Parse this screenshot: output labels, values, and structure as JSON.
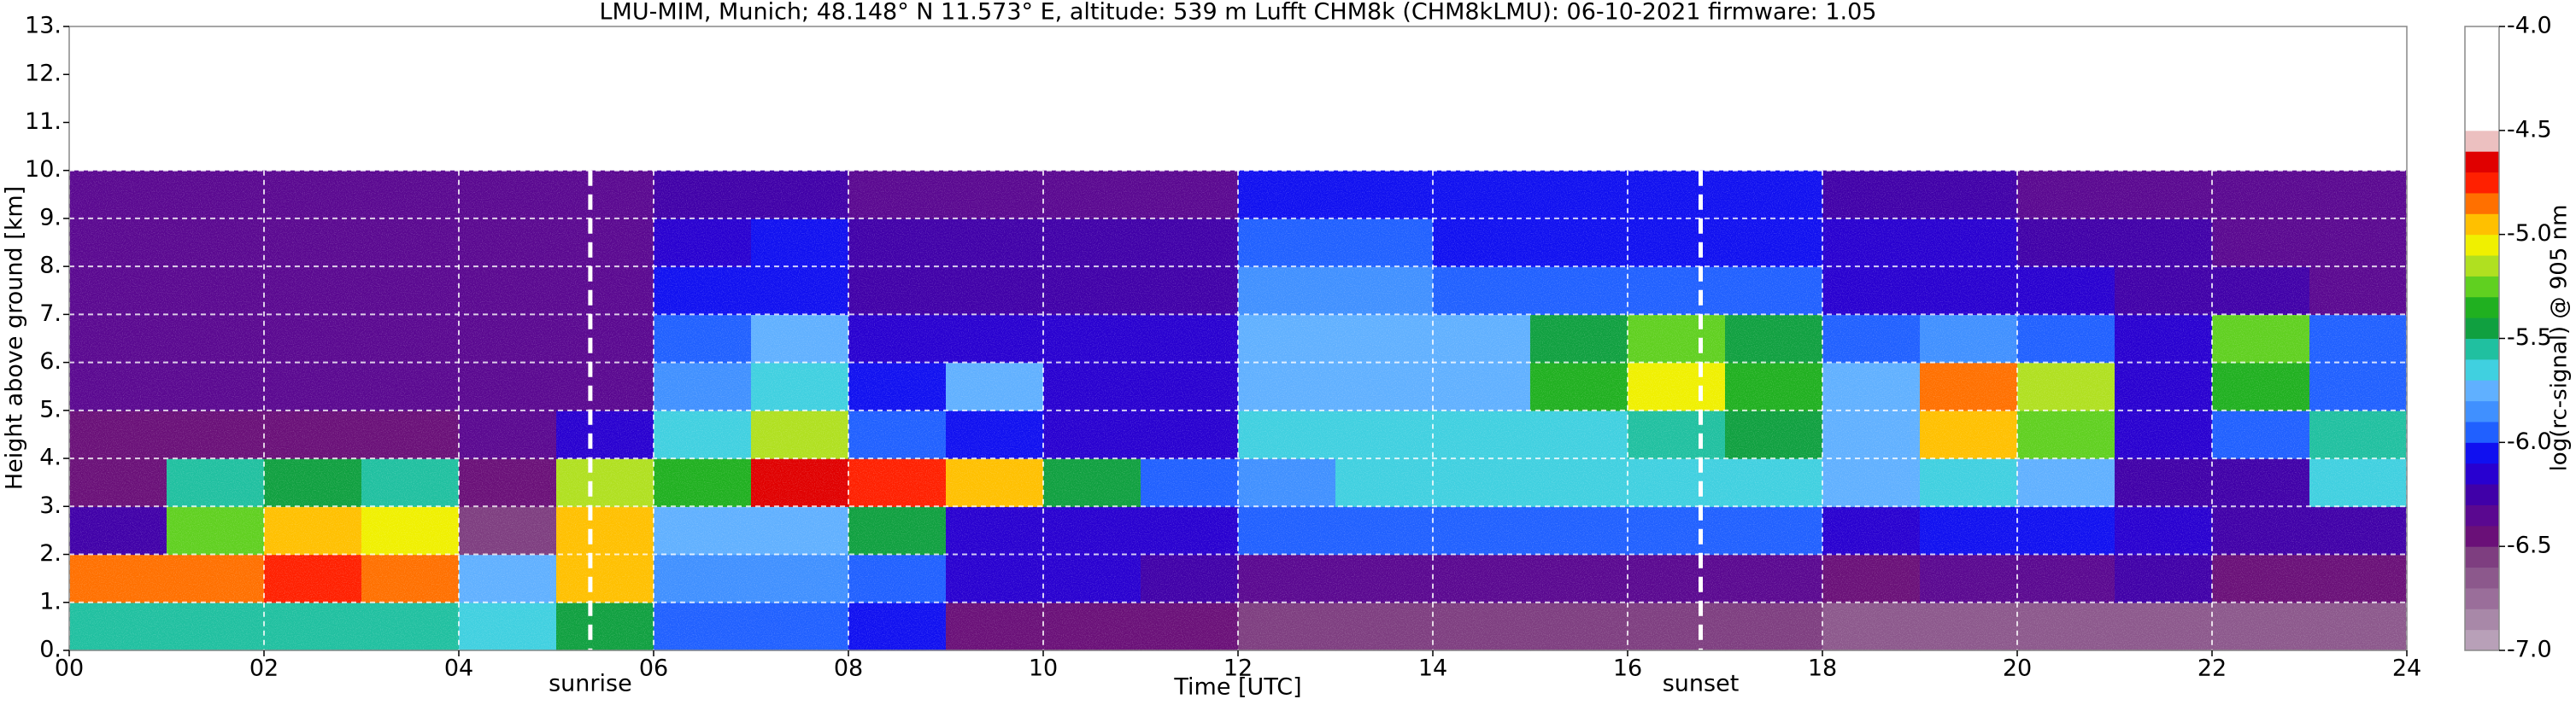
{
  "chart_data": {
    "type": "heatmap",
    "title": "LMU-MIM, Munich; 48.148° N 11.573° E, altitude: 539 m    Lufft CHM8k (CHM8kLMU): 06-10-2021    firmware: 1.05",
    "xlabel": "Time [UTC]",
    "ylabel": "Height above ground [km]",
    "colorbar_label": "log(rc-signal) @ 905 nm",
    "xlim": [
      0,
      24
    ],
    "xticks": [
      {
        "value": 0,
        "label": "00"
      },
      {
        "value": 2,
        "label": "02"
      },
      {
        "value": 4,
        "label": "04"
      },
      {
        "value": 6,
        "label": "06"
      },
      {
        "value": 8,
        "label": "08"
      },
      {
        "value": 10,
        "label": "10"
      },
      {
        "value": 12,
        "label": "12"
      },
      {
        "value": 14,
        "label": "14"
      },
      {
        "value": 16,
        "label": "16"
      },
      {
        "value": 18,
        "label": "18"
      },
      {
        "value": 20,
        "label": "20"
      },
      {
        "value": 22,
        "label": "22"
      },
      24
    ],
    "ylim": [
      0,
      13
    ],
    "yticks": [
      {
        "value": 0,
        "label": "0."
      },
      {
        "value": 1,
        "label": "1."
      },
      {
        "value": 2,
        "label": "2."
      },
      {
        "value": 3,
        "label": "3."
      },
      {
        "value": 4,
        "label": "4."
      },
      {
        "value": 5,
        "label": "5."
      },
      {
        "value": 6,
        "label": "6."
      },
      {
        "value": 7,
        "label": "7."
      },
      {
        "value": 8,
        "label": "8."
      },
      {
        "value": 9,
        "label": "9."
      },
      {
        "value": 10,
        "label": "10."
      },
      {
        "value": 11,
        "label": "11."
      },
      {
        "value": 12,
        "label": "12."
      },
      {
        "value": 13,
        "label": "13."
      }
    ],
    "grid": true,
    "zlim": [
      -7,
      -4
    ],
    "zticks": [
      {
        "value": -7,
        "label": "-7.0"
      },
      -6.5,
      {
        "value": -6,
        "label": "-6.0"
      },
      -5.5,
      {
        "value": -5,
        "label": "-5.0"
      },
      -4.5,
      {
        "value": -4,
        "label": "-4.0"
      }
    ],
    "colorscale": [
      {
        "value": -7.0,
        "color": "#b8a0b8"
      },
      {
        "value": -6.9,
        "color": "#a888a8"
      },
      {
        "value": -6.8,
        "color": "#9a6e9a"
      },
      {
        "value": -6.7,
        "color": "#8c588c"
      },
      {
        "value": -6.6,
        "color": "#7e3e80"
      },
      {
        "value": -6.5,
        "color": "#6a1078"
      },
      {
        "value": -6.4,
        "color": "#5a0890"
      },
      {
        "value": -6.3,
        "color": "#4000a8"
      },
      {
        "value": -6.2,
        "color": "#2800d0"
      },
      {
        "value": -6.1,
        "color": "#1010f0"
      },
      {
        "value": -6.0,
        "color": "#2060ff"
      },
      {
        "value": -5.9,
        "color": "#4090ff"
      },
      {
        "value": -5.8,
        "color": "#60b0ff"
      },
      {
        "value": -5.7,
        "color": "#40d0e0"
      },
      {
        "value": -5.6,
        "color": "#20c0a0"
      },
      {
        "value": -5.5,
        "color": "#10a040"
      },
      {
        "value": -5.4,
        "color": "#20b020"
      },
      {
        "value": -5.3,
        "color": "#60d020"
      },
      {
        "value": -5.2,
        "color": "#b0e020"
      },
      {
        "value": -5.1,
        "color": "#f0f000"
      },
      {
        "value": -5.0,
        "color": "#ffc000"
      },
      {
        "value": -4.9,
        "color": "#ff7000"
      },
      {
        "value": -4.8,
        "color": "#ff2000"
      },
      {
        "value": -4.7,
        "color": "#e00000"
      },
      {
        "value": -4.6,
        "color": "#ecc0c0"
      },
      {
        "value": -4.5,
        "color": "#ffffff"
      }
    ],
    "xbins": [
      0,
      1,
      2,
      3,
      4,
      5,
      6,
      7,
      8,
      9,
      10,
      11,
      12,
      13,
      14,
      15,
      16,
      17,
      18,
      19,
      20,
      21,
      22,
      23,
      24
    ],
    "ybins": [
      0,
      1,
      2,
      3,
      4,
      5,
      6,
      7,
      8,
      9,
      10
    ],
    "z": [
      [
        -5.6,
        -5.6,
        -5.6,
        -5.6,
        -5.7,
        -5.5,
        -6.0,
        -6.0,
        -6.1,
        -6.5,
        -6.5,
        -6.5,
        -6.6,
        -6.6,
        -6.6,
        -6.6,
        -6.6,
        -6.6,
        -6.7,
        -6.7,
        -6.7,
        -6.7,
        -6.7,
        -6.7
      ],
      [
        -4.9,
        -4.9,
        -4.8,
        -4.9,
        -5.8,
        -5.0,
        -5.9,
        -5.9,
        -6.0,
        -6.2,
        -6.2,
        -6.3,
        -6.4,
        -6.4,
        -6.4,
        -6.4,
        -6.4,
        -6.4,
        -6.5,
        -6.4,
        -6.4,
        -6.3,
        -6.5,
        -6.5
      ],
      [
        -6.3,
        -5.3,
        -5.0,
        -5.1,
        -6.6,
        -5.0,
        -5.8,
        -5.8,
        -5.5,
        -6.2,
        -6.2,
        -6.2,
        -6.0,
        -6.0,
        -6.0,
        -6.0,
        -6.0,
        -6.0,
        -6.2,
        -6.1,
        -6.1,
        -6.2,
        -6.3,
        -6.3
      ],
      [
        -6.5,
        -5.6,
        -5.5,
        -5.6,
        -6.5,
        -5.2,
        -5.4,
        -4.7,
        -4.8,
        -5.0,
        -5.5,
        -6.0,
        -5.9,
        -5.7,
        -5.7,
        -5.7,
        -5.7,
        -5.7,
        -5.8,
        -5.7,
        -5.8,
        -6.3,
        -6.3,
        -5.7
      ],
      [
        -6.5,
        -6.5,
        -6.5,
        -6.5,
        -6.4,
        -6.2,
        -5.7,
        -5.2,
        -6.0,
        -6.1,
        -6.2,
        -6.2,
        -5.7,
        -5.7,
        -5.7,
        -5.7,
        -5.6,
        -5.5,
        -5.8,
        -5.0,
        -5.3,
        -6.2,
        -6.0,
        -5.6
      ],
      [
        -6.4,
        -6.4,
        -6.4,
        -6.4,
        -6.4,
        -6.4,
        -5.9,
        -5.7,
        -6.1,
        -5.8,
        -6.2,
        -6.2,
        -5.8,
        -5.8,
        -5.8,
        -5.4,
        -5.1,
        -5.4,
        -5.8,
        -4.9,
        -5.2,
        -6.2,
        -5.4,
        -6.0
      ],
      [
        -6.4,
        -6.4,
        -6.4,
        -6.4,
        -6.4,
        -6.4,
        -6.0,
        -5.8,
        -6.2,
        -6.2,
        -6.2,
        -6.2,
        -5.8,
        -5.8,
        -5.8,
        -5.5,
        -5.3,
        -5.5,
        -6.0,
        -5.9,
        -6.0,
        -6.2,
        -5.3,
        -6.0
      ],
      [
        -6.4,
        -6.4,
        -6.4,
        -6.4,
        -6.4,
        -6.4,
        -6.1,
        -6.1,
        -6.3,
        -6.3,
        -6.3,
        -6.3,
        -5.9,
        -5.9,
        -6.0,
        -6.0,
        -6.0,
        -6.0,
        -6.2,
        -6.2,
        -6.2,
        -6.3,
        -6.3,
        -6.4
      ],
      [
        -6.4,
        -6.4,
        -6.4,
        -6.4,
        -6.4,
        -6.4,
        -6.2,
        -6.1,
        -6.3,
        -6.3,
        -6.3,
        -6.3,
        -6.0,
        -6.0,
        -6.1,
        -6.1,
        -6.1,
        -6.1,
        -6.2,
        -6.2,
        -6.3,
        -6.3,
        -6.4,
        -6.4
      ],
      [
        -6.4,
        -6.4,
        -6.4,
        -6.4,
        -6.4,
        -6.4,
        -6.3,
        -6.3,
        -6.4,
        -6.4,
        -6.4,
        -6.4,
        -6.1,
        -6.1,
        -6.1,
        -6.1,
        -6.1,
        -6.1,
        -6.3,
        -6.3,
        -6.4,
        -6.4,
        -6.4,
        -6.4
      ]
    ],
    "annotations": [
      {
        "text": "sunrise",
        "x": 5.35
      },
      {
        "text": "sunset",
        "x": 16.75
      }
    ]
  }
}
